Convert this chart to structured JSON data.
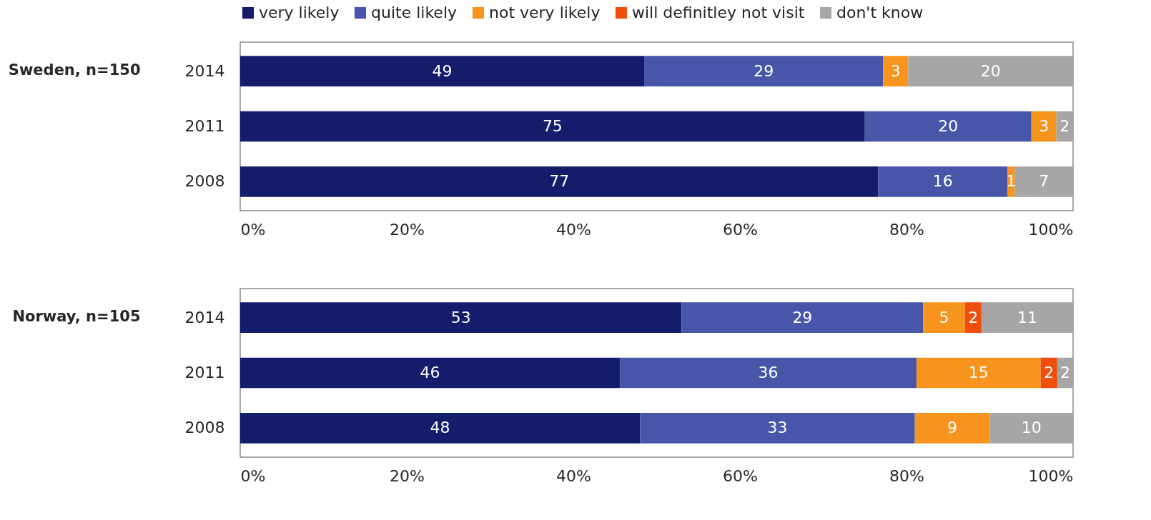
{
  "chart_data": [
    {
      "type": "bar",
      "orientation": "horizontal",
      "stacked": true,
      "ylabel": "Sweden, n=150",
      "categories": [
        "2014",
        "2011",
        "2008"
      ],
      "xlim": [
        0,
        100
      ],
      "xticks": [
        {
          "value": 0,
          "label": "0%"
        },
        {
          "value": 20,
          "label": "20%"
        },
        {
          "value": 40,
          "label": "40%"
        },
        {
          "value": 60,
          "label": "60%"
        },
        {
          "value": 80,
          "label": "80%"
        },
        {
          "value": 100,
          "label": "100%"
        }
      ],
      "grid": false,
      "legend": "top",
      "series": [
        {
          "name": "very likely",
          "color": "#141c6b",
          "values": [
            48.5,
            75,
            76.6
          ],
          "value_labels": [
            "49",
            "75",
            "77"
          ]
        },
        {
          "name": "quite likely",
          "color": "#4756a8",
          "values": [
            28.7,
            20,
            15.5
          ],
          "value_labels": [
            "29",
            "20",
            "16"
          ]
        },
        {
          "name": "not very likely",
          "color": "#f7941d",
          "values": [
            3,
            3,
            0.9
          ],
          "value_labels": [
            "3",
            "3",
            "1"
          ]
        },
        {
          "name": "will definitley not visit",
          "color": "#f04e0c",
          "values": [
            null,
            null,
            null
          ]
        },
        {
          "name": "don't know",
          "color": "#a6a6a6",
          "values": [
            19.8,
            2,
            7
          ],
          "value_labels": [
            "20",
            "2",
            "7"
          ]
        }
      ]
    },
    {
      "type": "bar",
      "orientation": "horizontal",
      "stacked": true,
      "ylabel": "Norway, n=105",
      "categories": [
        "2014",
        "2011",
        "2008"
      ],
      "xlim": [
        0,
        100
      ],
      "xticks": [
        {
          "value": 0,
          "label": "0%"
        },
        {
          "value": 20,
          "label": "20%"
        },
        {
          "value": 40,
          "label": "40%"
        },
        {
          "value": 60,
          "label": "60%"
        },
        {
          "value": 80,
          "label": "80%"
        },
        {
          "value": 100,
          "label": "100%"
        }
      ],
      "grid": false,
      "series": [
        {
          "color": "#141c6b",
          "values": [
            53,
            45.6,
            48
          ],
          "value_labels": [
            "53",
            "46",
            "48"
          ]
        },
        {
          "color": "#4756a8",
          "values": [
            29,
            35.6,
            33
          ],
          "value_labels": [
            "29",
            "36",
            "33"
          ]
        },
        {
          "color": "#f7941d",
          "values": [
            5,
            14.9,
            9
          ],
          "value_labels": [
            "5",
            "15",
            "9"
          ]
        },
        {
          "color": "#f04e0c",
          "values": [
            2,
            2,
            null
          ],
          "value_labels": [
            "2",
            "2",
            null
          ]
        },
        {
          "color": "#a6a6a6",
          "values": [
            11,
            1.9,
            10
          ],
          "value_labels": [
            "11",
            "2",
            "10"
          ]
        }
      ]
    }
  ]
}
